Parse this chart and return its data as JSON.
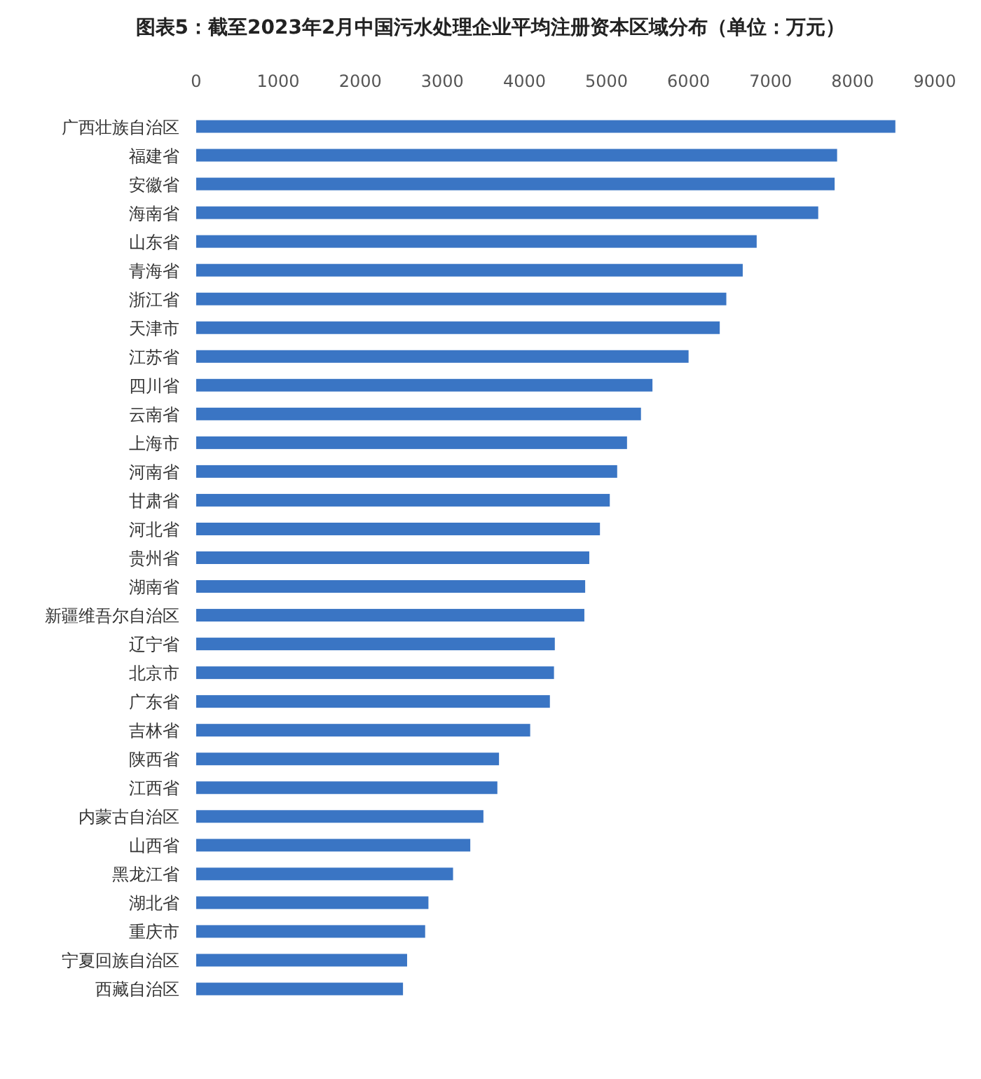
{
  "chart_data": {
    "type": "bar",
    "orientation": "horizontal",
    "title": "图表5：截至2023年2月中国污水处理企业平均注册资本区域分布（单位：万元）",
    "categories": [
      "广西壮族自治区",
      "福建省",
      "安徽省",
      "海南省",
      "山东省",
      "青海省",
      "浙江省",
      "天津市",
      "江苏省",
      "四川省",
      "云南省",
      "上海市",
      "河南省",
      "甘肃省",
      "河北省",
      "贵州省",
      "湖南省",
      "新疆维吾尔自治区",
      "辽宁省",
      "北京市",
      "广东省",
      "吉林省",
      "陕西省",
      "江西省",
      "内蒙古自治区",
      "山西省",
      "黑龙江省",
      "湖北省",
      "重庆市",
      "宁夏回族自治区",
      "西藏自治区"
    ],
    "values": [
      8520,
      7810,
      7780,
      7580,
      6830,
      6660,
      6460,
      6380,
      6000,
      5560,
      5420,
      5250,
      5130,
      5040,
      4920,
      4790,
      4740,
      4730,
      4370,
      4360,
      4310,
      4070,
      3690,
      3670,
      3500,
      3340,
      3130,
      2830,
      2790,
      2570,
      2520
    ],
    "color": "#3a75c4",
    "xlim": [
      0,
      9000
    ],
    "xticks": [
      0,
      1000,
      2000,
      3000,
      4000,
      5000,
      6000,
      7000,
      8000,
      9000
    ]
  }
}
